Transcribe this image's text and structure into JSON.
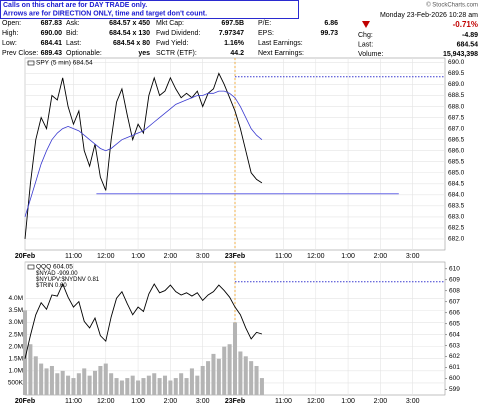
{
  "header": {
    "notice": [
      "Calls on this chart are for DAY TRADE only.",
      "Arrows are for DIRECTION ONLY, time and target don't count."
    ],
    "quote": [
      [
        {
          "label": "Open:",
          "value": "687.83"
        },
        {
          "label": "Ask:",
          "value": "684.57 x 450"
        },
        {
          "label": "Mkt Cap:",
          "value": "697.5B"
        },
        {
          "label": "P/E:",
          "value": "6.86"
        }
      ],
      [
        {
          "label": "High:",
          "value": "690.00"
        },
        {
          "label": "Bid:",
          "value": "684.54 x 130"
        },
        {
          "label": "Fwd Dividend:",
          "value": "7.97347"
        },
        {
          "label": "EPS:",
          "value": "99.73"
        }
      ],
      [
        {
          "label": "Low:",
          "value": "684.41"
        },
        {
          "label": "Last:",
          "value": "684.54 x 80"
        },
        {
          "label": "Fwd Yield:",
          "value": "1.16%"
        },
        {
          "label": "Last Earnings:"
        }
      ],
      [
        {
          "label": "Prev Close:",
          "value": "689.43"
        },
        {
          "label": "Optionable:",
          "value": "yes"
        },
        {
          "label": "SCTR (ETF):",
          "value": "44.2"
        },
        {
          "label": "Next Earnings:"
        }
      ]
    ],
    "copyright": "© StockCharts.com",
    "date": "Monday  23-Feb-2026  10:28 am",
    "change_pct": "-0.71%",
    "right": [
      {
        "label": "Chg:",
        "value": "-4.89"
      },
      {
        "label": "Last:",
        "value": "684.54"
      },
      {
        "label": "Volume:",
        "value": "15,943,398"
      }
    ]
  },
  "charts": [
    {
      "type": "line",
      "x": [
        0,
        2,
        4,
        6,
        8,
        10,
        12,
        14,
        16,
        18,
        20,
        22,
        24,
        26,
        28,
        30,
        32,
        34,
        36,
        38,
        40,
        42,
        44,
        46,
        48,
        50,
        52,
        54,
        56,
        58,
        60,
        62,
        64,
        66,
        68,
        70,
        72,
        74,
        76,
        78,
        80,
        82,
        84,
        86,
        88
      ],
      "series": [
        {
          "name": "SPY (5 min) 684.54",
          "color": "#000000",
          "values": [
            682.0,
            684.5,
            686.5,
            687.5,
            687.0,
            688.5,
            688.3,
            689.3,
            688.0,
            687.2,
            687.8,
            686.0,
            685.3,
            686.3,
            684.8,
            684.2,
            686.5,
            688.2,
            688.8,
            687.6,
            686.5,
            687.2,
            686.8,
            688.5,
            689.3,
            688.5,
            688.7,
            689.3,
            688.8,
            688.4,
            688.6,
            688.4,
            688.7,
            688.0,
            688.6,
            688.8,
            689.5,
            689.0,
            688.4,
            687.8,
            687.0,
            686.0,
            685.0,
            684.7,
            684.54
          ]
        },
        {
          "color": "#3a3ad0",
          "values": [
            683.0,
            683.8,
            684.6,
            685.4,
            686.0,
            686.5,
            686.8,
            687.0,
            687.1,
            687.0,
            686.9,
            686.7,
            686.5,
            686.3,
            686.1,
            686.0,
            686.1,
            686.3,
            686.5,
            686.6,
            686.7,
            686.8,
            686.9,
            687.1,
            687.3,
            687.5,
            687.7,
            687.9,
            688.1,
            688.2,
            688.3,
            688.4,
            688.5,
            688.5,
            688.6,
            688.6,
            688.7,
            688.7,
            688.6,
            688.4,
            688.0,
            687.5,
            687.0,
            686.7,
            686.5
          ]
        }
      ],
      "xlim": [
        0,
        156
      ],
      "xticks": [
        {
          "value": 0,
          "label": "20Feb"
        },
        {
          "value": 18,
          "label": "11:00"
        },
        {
          "value": 30,
          "label": "12:00"
        },
        {
          "value": 42,
          "label": "1:00"
        },
        {
          "value": 54,
          "label": "2:00"
        },
        {
          "value": 66,
          "label": "3:00"
        },
        {
          "value": 78,
          "label": "23Feb"
        },
        {
          "value": 96,
          "label": "11:00"
        },
        {
          "value": 108,
          "label": "12:00"
        },
        {
          "value": 120,
          "label": "1:00"
        },
        {
          "value": 132,
          "label": "2:00"
        },
        {
          "value": 144,
          "label": "3:00"
        }
      ],
      "session_break": 78,
      "ylim": [
        681.5,
        690.2
      ],
      "yticks": [
        {
          "value": 690,
          "label": "690.0"
        },
        689.5,
        {
          "value": 689,
          "label": "689.0"
        },
        688.5,
        {
          "value": 688,
          "label": "688.0"
        },
        687.5,
        {
          "value": 687,
          "label": "687.0"
        },
        686.5,
        {
          "value": 686,
          "label": "686.0"
        },
        685.5,
        {
          "value": 685,
          "label": "685.0"
        },
        684.5,
        {
          "value": 684,
          "label": "684.0"
        },
        683.5,
        {
          "value": 683,
          "label": "683.0"
        },
        682.5,
        {
          "value": 682,
          "label": "682.0"
        }
      ],
      "hlines": [
        {
          "value": 684.05,
          "color": "#6a6ae8",
          "style": "solid"
        },
        {
          "value": 689.35,
          "color": "#3a3ad0",
          "style": "dotted"
        }
      ],
      "grid": true
    },
    {
      "type": "line",
      "x": [
        0,
        2,
        4,
        6,
        8,
        10,
        12,
        14,
        16,
        18,
        20,
        22,
        24,
        26,
        28,
        30,
        32,
        34,
        36,
        38,
        40,
        42,
        44,
        46,
        48,
        50,
        52,
        54,
        56,
        58,
        60,
        62,
        64,
        66,
        68,
        70,
        72,
        74,
        76,
        78,
        80,
        82,
        84,
        86,
        88
      ],
      "series": [
        {
          "type": "bar",
          "color": "#b4b4b4",
          "values": [
            3500000,
            2100000,
            1600000,
            1300000,
            1100000,
            1200000,
            900000,
            1000000,
            800000,
            700000,
            900000,
            1100000,
            800000,
            1000000,
            1200000,
            1300000,
            900000,
            700000,
            600000,
            700000,
            800000,
            600000,
            700000,
            800000,
            900000,
            700000,
            800000,
            600000,
            700000,
            900000,
            700000,
            1100000,
            800000,
            1200000,
            1400000,
            1700000,
            1500000,
            2000000,
            2100000,
            3000000,
            1800000,
            1600000,
            1400000,
            1200000,
            700000
          ]
        },
        {
          "name": "QQQ 604.05",
          "axis": "y2",
          "color": "#000000",
          "values": [
            601.8,
            603.9,
            605.8,
            606.9,
            606.3,
            607.6,
            607.5,
            608.6,
            607.4,
            606.5,
            607.0,
            605.2,
            604.6,
            605.5,
            603.9,
            603.4,
            605.6,
            607.3,
            607.9,
            606.8,
            605.8,
            606.5,
            606.1,
            607.7,
            608.6,
            607.8,
            608.0,
            608.5,
            607.9,
            607.6,
            607.8,
            607.5,
            607.8,
            607.1,
            607.6,
            607.9,
            608.5,
            608.0,
            607.4,
            606.5,
            605.8,
            604.6,
            603.6,
            604.2,
            604.05
          ]
        }
      ],
      "overlays": [
        "$NYAD -909.00",
        "$NYUPV:$NYDNV 0.81",
        "$TRIN 0.60"
      ],
      "xlim": [
        0,
        156
      ],
      "xticks": [
        {
          "value": 0,
          "label": "20Feb"
        },
        {
          "value": 18,
          "label": "11:00"
        },
        {
          "value": 30,
          "label": "12:00"
        },
        {
          "value": 42,
          "label": "1:00"
        },
        {
          "value": 54,
          "label": "2:00"
        },
        {
          "value": 66,
          "label": "3:00"
        },
        {
          "value": 78,
          "label": "23Feb"
        },
        {
          "value": 96,
          "label": "11:00"
        },
        {
          "value": 108,
          "label": "12:00"
        },
        {
          "value": 120,
          "label": "1:00"
        },
        {
          "value": 132,
          "label": "2:00"
        },
        {
          "value": 144,
          "label": "3:00"
        }
      ],
      "session_break": 78,
      "ylim": [
        0,
        5500000
      ],
      "yticks": [
        {
          "value": 4000000,
          "label": "4.0M"
        },
        {
          "value": 3500000,
          "label": "3.5M"
        },
        {
          "value": 3000000,
          "label": "3.0M"
        },
        {
          "value": 2500000,
          "label": "2.5M"
        },
        {
          "value": 2000000,
          "label": "2.0M"
        },
        {
          "value": 1500000,
          "label": "1.5M"
        },
        {
          "value": 1000000,
          "label": "1.0M"
        },
        {
          "value": 500000,
          "label": "500K"
        }
      ],
      "y2lim": [
        598.5,
        610.6
      ],
      "y2ticks": [
        610,
        609,
        608,
        607,
        606,
        605,
        604,
        603,
        602,
        601,
        600,
        599
      ],
      "hlines": [
        {
          "value": 608.8,
          "axis": "y2",
          "color": "#3a3ad0",
          "style": "dotted"
        }
      ],
      "grid": true
    }
  ]
}
